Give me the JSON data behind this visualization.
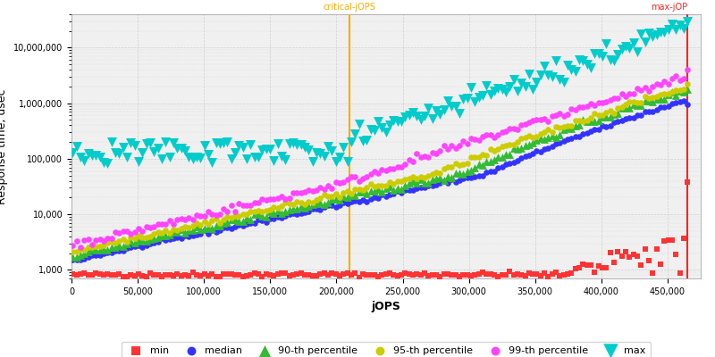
{
  "xlabel": "jOPS",
  "ylabel": "Response time, usec",
  "critical_jops": 210000,
  "max_jops": 465000,
  "critical_label": "critical-jOPS",
  "max_label": "max-jOP",
  "xlim": [
    0,
    475000
  ],
  "ylim_log": [
    700,
    40000000
  ],
  "background_color": "#ffffff",
  "plot_bg_color": "#f0f0f0",
  "grid_color": "#cccccc",
  "critical_line_color": "#ffaa00",
  "max_line_color": "#ff2222",
  "series_min": {
    "color": "#ff3333",
    "marker": "s",
    "ms": 3,
    "label": "min"
  },
  "series_median": {
    "color": "#3333ff",
    "marker": "o",
    "ms": 3,
    "label": "median"
  },
  "series_p90": {
    "color": "#33bb33",
    "marker": "^",
    "ms": 4,
    "label": "90-th percentile"
  },
  "series_p95": {
    "color": "#cccc00",
    "marker": "o",
    "ms": 3,
    "label": "95-th percentile"
  },
  "series_p99": {
    "color": "#ff44ff",
    "marker": "o",
    "ms": 3,
    "label": "99-th percentile"
  },
  "series_max": {
    "color": "#00cccc",
    "marker": "v",
    "ms": 5,
    "label": "max"
  },
  "legend_fontsize": 8,
  "axis_fontsize": 9,
  "tick_fontsize": 7
}
